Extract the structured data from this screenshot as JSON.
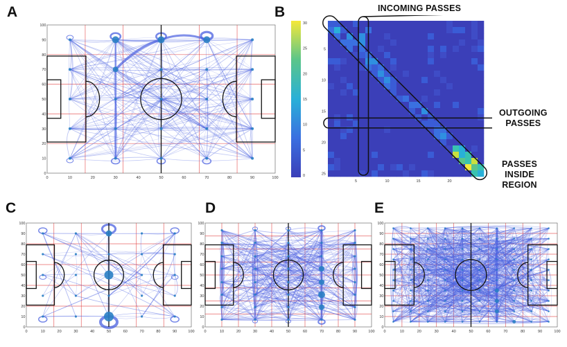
{
  "panels": {
    "A": {
      "letter": "A",
      "x_ticks": [
        "0",
        "10",
        "20",
        "30",
        "40",
        "50",
        "60",
        "70",
        "80",
        "90",
        "100"
      ],
      "y_ticks": [
        "100",
        "90",
        "80",
        "70",
        "60",
        "50",
        "40",
        "30",
        "20",
        "10",
        "0"
      ]
    },
    "B": {
      "letter": "B",
      "x_ticks": [
        "5",
        "10",
        "15",
        "20"
      ],
      "y_ticks": [
        "5",
        "10",
        "15",
        "20",
        "25"
      ],
      "colorbar_ticks": [
        "30",
        "25",
        "20",
        "15",
        "10",
        "5",
        "0"
      ]
    },
    "C": {
      "letter": "C",
      "x_ticks": [
        "0",
        "10",
        "20",
        "30",
        "40",
        "50",
        "60",
        "70",
        "80",
        "90",
        "100"
      ],
      "y_ticks": [
        "100",
        "90",
        "80",
        "70",
        "60",
        "50",
        "40",
        "30",
        "20",
        "10",
        "0"
      ]
    },
    "D": {
      "letter": "D",
      "x_ticks": [
        "0",
        "10",
        "20",
        "30",
        "40",
        "50",
        "60",
        "70",
        "80",
        "90",
        "100"
      ],
      "y_ticks": [
        "100",
        "90",
        "80",
        "70",
        "60",
        "50",
        "40",
        "30",
        "20",
        "10",
        "0"
      ]
    },
    "E": {
      "letter": "E",
      "x_ticks": [
        "0",
        "10",
        "20",
        "30",
        "40",
        "50",
        "60",
        "70",
        "80",
        "90",
        "100"
      ],
      "y_ticks": [
        "100",
        "90",
        "80",
        "70",
        "60",
        "50",
        "40",
        "30",
        "20",
        "10",
        "0"
      ]
    }
  },
  "callouts": {
    "incoming": "INCOMING PASSES",
    "outgoing_1": "OUTGOING",
    "outgoing_2": "PASSES",
    "inside_1": "PASSES",
    "inside_2": "INSIDE",
    "inside_3": "REGION"
  },
  "colors": {
    "edge": "#4a60e0",
    "node": "#2a7fc4",
    "grid_red": "#e03030",
    "pitch_line": "#111111",
    "heat_base": "#3b3fb8"
  }
}
